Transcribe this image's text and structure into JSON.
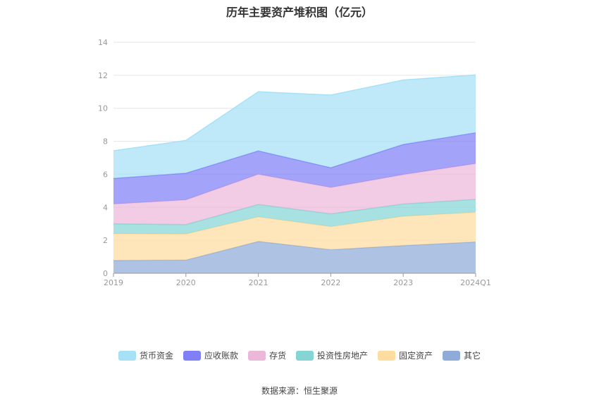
{
  "chart_data": {
    "type": "area",
    "stacked": true,
    "title": "历年主要资产堆积图（亿元）",
    "categories": [
      "2019",
      "2020",
      "2021",
      "2022",
      "2023",
      "2024Q1"
    ],
    "ylim": [
      0,
      14
    ],
    "yticks": [
      0,
      2,
      4,
      6,
      8,
      10,
      12,
      14
    ],
    "grid": true,
    "legend_position": "bottom",
    "series": [
      {
        "name": "其它",
        "color": "#8facd9",
        "values": [
          0.78,
          0.8,
          1.93,
          1.43,
          1.68,
          1.9
        ]
      },
      {
        "name": "固定资产",
        "color": "#ffdca0",
        "values": [
          1.62,
          1.58,
          1.49,
          1.4,
          1.77,
          1.8
        ]
      },
      {
        "name": "投资性房地产",
        "color": "#85d5d5",
        "values": [
          0.6,
          0.57,
          0.75,
          0.77,
          0.75,
          0.78
        ]
      },
      {
        "name": "存货",
        "color": "#ebb8da",
        "values": [
          1.2,
          1.5,
          1.83,
          1.6,
          1.78,
          2.17
        ]
      },
      {
        "name": "应收账款",
        "color": "#7f7ff7",
        "values": [
          1.55,
          1.62,
          1.42,
          1.2,
          1.83,
          1.87
        ]
      },
      {
        "name": "货币资金",
        "color": "#a6e1f7",
        "values": [
          1.67,
          1.98,
          3.58,
          4.4,
          3.9,
          3.5
        ]
      }
    ]
  },
  "legend": [
    {
      "label": "货币资金",
      "color": "#a6e1f7"
    },
    {
      "label": "应收账款",
      "color": "#7f7ff7"
    },
    {
      "label": "存货",
      "color": "#ebb8da"
    },
    {
      "label": "投资性房地产",
      "color": "#85d5d5"
    },
    {
      "label": "固定资产",
      "color": "#ffdca0"
    },
    {
      "label": "其它",
      "color": "#8facd9"
    }
  ],
  "source": "数据来源：恒生聚源"
}
